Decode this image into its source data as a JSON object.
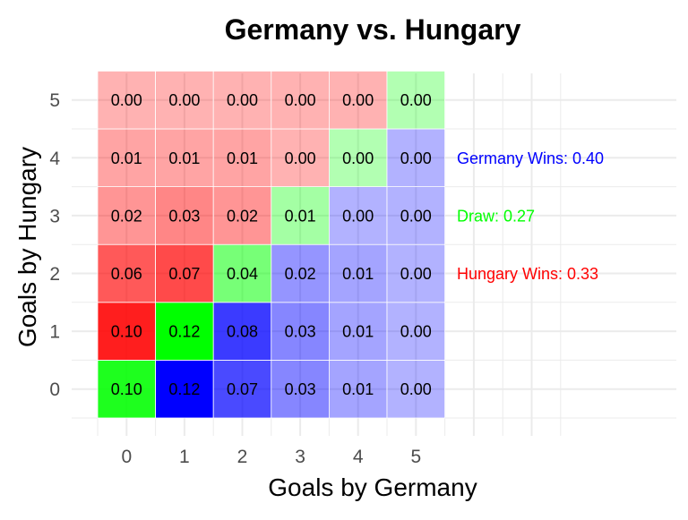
{
  "chart_data": {
    "type": "heatmap",
    "title": "Germany vs. Hungary",
    "xlabel": "Goals by Germany",
    "ylabel": "Goals by Hungary",
    "x": [
      0,
      1,
      2,
      3,
      4,
      5
    ],
    "y": [
      0,
      1,
      2,
      3,
      4,
      5
    ],
    "x_tick_labels": [
      "0",
      "1",
      "2",
      "3",
      "4",
      "5"
    ],
    "y_tick_labels": [
      "0",
      "1",
      "2",
      "3",
      "4",
      "5"
    ],
    "grid": true,
    "values_by_hungary_goals": [
      [
        "0.10",
        "0.12",
        "0.07",
        "0.03",
        "0.01",
        "0.00"
      ],
      [
        "0.10",
        "0.12",
        "0.08",
        "0.03",
        "0.01",
        "0.00"
      ],
      [
        "0.06",
        "0.07",
        "0.04",
        "0.02",
        "0.01",
        "0.00"
      ],
      [
        "0.02",
        "0.03",
        "0.02",
        "0.01",
        "0.00",
        "0.00"
      ],
      [
        "0.01",
        "0.01",
        "0.01",
        "0.00",
        "0.00",
        "0.00"
      ],
      [
        "0.00",
        "0.00",
        "0.00",
        "0.00",
        "0.00",
        "0.00"
      ]
    ],
    "outcome_colors": {
      "germany_wins": "#0000ff",
      "draw": "#00ff00",
      "hungary_wins": "#ff0000"
    },
    "annotations": [
      {
        "outcome": "germany_wins",
        "text": "Germany Wins: 0.40",
        "color": "#0000ff"
      },
      {
        "outcome": "draw",
        "text": "Draw: 0.27",
        "color": "#00ff00"
      },
      {
        "outcome": "hungary_wins",
        "text": "Hungary Wins: 0.33",
        "color": "#ff0000"
      }
    ]
  }
}
